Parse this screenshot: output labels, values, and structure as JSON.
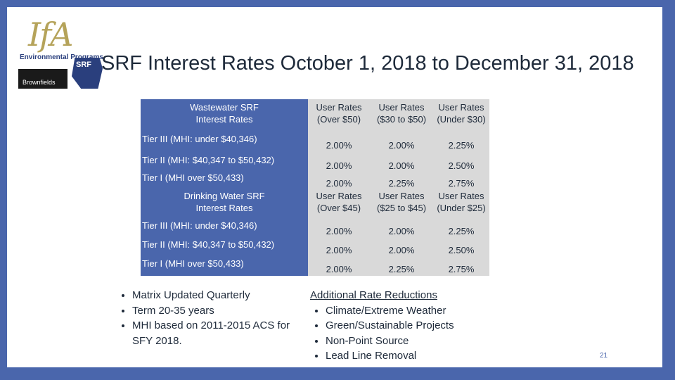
{
  "logo": {
    "ifa": "IfA",
    "environmental_programs": "Environmental Programs",
    "brownfields": "Brownfields",
    "srf_badge": "SRF"
  },
  "title": "SRF Interest Rates October 1, 2018 to December 31, 2018",
  "wastewater": {
    "header": "Wastewater SRF Interest Rates",
    "columns": [
      "User Rates (Over $50)",
      "User Rates ($30 to $50)",
      "User Rates (Under $30)"
    ],
    "rows": [
      {
        "tier": "Tier III (MHI: under $40,346)",
        "values": [
          "2.00%",
          "2.00%",
          "2.25%"
        ]
      },
      {
        "tier": "Tier II (MHI: $40,347 to $50,432)",
        "values": [
          "2.00%",
          "2.00%",
          "2.50%"
        ]
      },
      {
        "tier": "Tier I (MHI over $50,433)",
        "values": [
          "2.00%",
          "2.25%",
          "2.75%"
        ]
      }
    ]
  },
  "drinking_water": {
    "header": "Drinking Water SRF Interest Rates",
    "columns": [
      "User Rates (Over $45)",
      "User Rates ($25 to $45)",
      "User Rates (Under $25)"
    ],
    "rows": [
      {
        "tier": "Tier III (MHI: under $40,346)",
        "values": [
          "2.00%",
          "2.00%",
          "2.25%"
        ]
      },
      {
        "tier": "Tier II (MHI: $40,347 to $50,432)",
        "values": [
          "2.00%",
          "2.00%",
          "2.50%"
        ]
      },
      {
        "tier": "Tier I (MHI over $50,433)",
        "values": [
          "2.00%",
          "2.25%",
          "2.75%"
        ]
      }
    ]
  },
  "notes": [
    "Matrix Updated Quarterly",
    "Term 20-35 years",
    "MHI based on 2011-2015 ACS for SFY 2018."
  ],
  "additional": {
    "title": "Additional Rate Reductions",
    "items": [
      "Climate/Extreme Weather",
      "Green/Sustainable Projects",
      "Non-Point Source",
      "Lead Line Removal"
    ]
  },
  "page_number": "21",
  "colors": {
    "frame": "#4a66ac",
    "header_blue": "#4a66ac",
    "cell_gray": "#d9d9d9",
    "text": "#1e2a3a"
  }
}
